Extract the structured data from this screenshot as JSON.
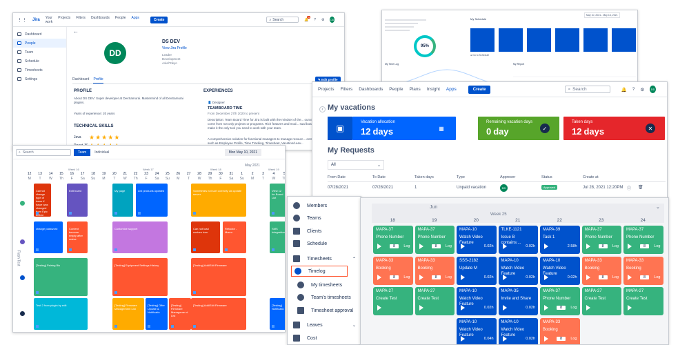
{
  "jira_profile": {
    "logo": "Jira",
    "nav": [
      "Your work",
      "Projects",
      "Filters",
      "Dashboards",
      "People",
      "Apps"
    ],
    "create": "Create",
    "search_placeholder": "Search",
    "notif_count": "9+",
    "avatar": "DD",
    "sidebar": [
      "Dashboard",
      "People",
      "Team",
      "Schedule",
      "Timesheets",
      "Settings"
    ],
    "name": "DS DEV",
    "view_profile": "View Jira Profile",
    "meta": [
      "Leader",
      "Development",
      "Asia/Tokyo"
    ],
    "tabs": [
      "Dashboard",
      "Profile"
    ],
    "edit_profile": "Edit profile",
    "profile_heading": "PROFILE",
    "about": "About DS DEV: Super developer at DevSamurai. Mastermind of all DevSamurai plugins.",
    "years": "Years of experience: 20 years",
    "skills_heading": "TECHNICAL SKILLS",
    "skills": [
      {
        "name": "Java",
        "stars": 5
      },
      {
        "name": "React JS",
        "stars": 5
      }
    ],
    "experiences_heading": "EXPERIENCES",
    "exp_role": "Designer",
    "exp_title": "TEAMBOARD TIME",
    "exp_dates": "From December 27th 2020 to present",
    "exp_desc": "Description: Team Board Time for Jira is built with the mindset of the... ources come from not only projects or programs. Rich features and mod... sual board make it the only tool you need to work with your team.",
    "exp_desc2": "A comprehensive solution for functional managers to manage resourc... ects such as Employee Profile, Time Tracking, Timesheet, Vacation/Leav..."
  },
  "dashboard_top": {
    "date_range": "May 10, 2021 - May 16, 2021",
    "gauge_value": "95%",
    "my_schedule": "My Schedule",
    "go_to_schedule": "Go to Schedule",
    "my_time_log": "My Time Log",
    "my_report": "My Report"
  },
  "team_board": {
    "search_placeholder": "Search",
    "toggle": [
      "Team",
      "Individual"
    ],
    "date": "Mon May 10, 2021",
    "month": "May 2021",
    "weeks": [
      "Week 16",
      "Week 17",
      "Week 18",
      "Week 19"
    ],
    "days": [
      "12",
      "13",
      "14",
      "15",
      "16",
      "17",
      "18",
      "19",
      "20",
      "21",
      "22",
      "23",
      "24",
      "25",
      "26",
      "27",
      "28",
      "29",
      "30",
      "31",
      "1",
      "2",
      "3",
      "4",
      "5"
    ],
    "dows": [
      "M",
      "T",
      "W",
      "Th",
      "F",
      "Sa",
      "Su",
      "M",
      "T",
      "W",
      "Th",
      "F",
      "Sa",
      "Su",
      "M",
      "T",
      "W",
      "Th",
      "F",
      "Sa",
      "Su",
      "M",
      "T",
      "W",
      "Th"
    ],
    "side_label": "Flash Test",
    "cards": [
      {
        "text": "Cannot change type of issue if issue was changed from Epic before",
        "color": "#de350b"
      },
      {
        "text": "Edit board",
        "color": "#6554c0"
      },
      {
        "text": "My page",
        "color": "#00a3bf"
      },
      {
        "text": "List products updated",
        "color": "#0065ff"
      },
      {
        "text": "Sometimes not sort correctly via update server",
        "color": "#ffab00"
      },
      {
        "text": "View 12 for Board List",
        "color": "#36b37e"
      },
      {
        "text": "change password",
        "color": "#0065ff"
      },
      {
        "text": "Content become empty after resize",
        "color": "#ff5630"
      },
      {
        "text": "Customize support",
        "color": "#c377e0"
      },
      {
        "text": "Can not load custom icon",
        "color": "#de350b"
      },
      {
        "text": "Refactor - Macro",
        "color": "#ff5630"
      },
      {
        "text": "SMS Integration",
        "color": "#36b37e"
      },
      {
        "text": "[Testing] Pairing Bis",
        "color": "#36b37e"
      },
      {
        "text": "[Testing] Equipment Settings History",
        "color": "#ff5630"
      },
      {
        "text": "[Testing] Add/Edit Firmware",
        "color": "#ff5630"
      },
      {
        "text": "Test 2 from plugin by edit",
        "color": "#00b8d9"
      },
      {
        "text": "[Testing] Firmware Management List",
        "color": "#ffab00"
      },
      {
        "text": "[Testing] Offer Update & Notificatio",
        "color": "#0065ff"
      },
      {
        "text": "[Testing] Firmware Manageme nt List",
        "color": "#ff5630"
      },
      {
        "text": "[Testing] Add/Edit Firmware",
        "color": "#ff5630"
      },
      {
        "text": "[Testing] Notificatio",
        "color": "#0065ff"
      }
    ]
  },
  "vacations": {
    "nav": [
      "Projects",
      "Filters",
      "Dashboards",
      "People",
      "Plans",
      "Insight",
      "Apps"
    ],
    "create": "Create",
    "search_placeholder": "Search",
    "avatar": "DD",
    "title": "My vacations",
    "tiles": [
      {
        "label": "Vacation allocation",
        "number": "12",
        "unit": "days",
        "color": "#0065ff"
      },
      {
        "label": "Remaining vacation days",
        "number": "0",
        "unit": "day",
        "color": "#57a52a"
      },
      {
        "label": "Taken days",
        "number": "12",
        "unit": "days",
        "color": "#e5262b"
      }
    ],
    "requests_title": "My Requests",
    "filter": "All",
    "columns": [
      "From Date",
      "To Date",
      "Taken days",
      "Type",
      "Approver",
      "Status",
      "Create at"
    ],
    "row": {
      "from": "07/28/2021",
      "to": "07/28/2021",
      "taken": "1",
      "type": "Unpaid vacation",
      "approver": "DD",
      "status": "Approved",
      "created": "Jul 28, 2021 12:20PM"
    }
  },
  "timelog_menu": {
    "items": [
      "Members",
      "Teams",
      "Clients",
      "Schedule",
      "Timesheets",
      "Timelog",
      "My timesheets",
      "Team's timesheets",
      "Timesheet approval",
      "Leaves",
      "Cost"
    ]
  },
  "timelog_board": {
    "month": "Jun",
    "week": "Week 25",
    "days": [
      "18",
      "19",
      "20",
      "21",
      "22",
      "23",
      "24"
    ],
    "columns": [
      [
        {
          "key": "MAPA-37",
          "title": "Phone Number",
          "num": "8",
          "end": "Log",
          "color": "#36b37e"
        },
        {
          "key": "MAPA-33",
          "title": "Booking",
          "num": "8",
          "end": "Log",
          "color": "#ff7452"
        },
        {
          "key": "MAPA-27",
          "title": "Create Test",
          "num": "",
          "end": "",
          "color": "#36b37e"
        }
      ],
      [
        {
          "key": "MAPA-37",
          "title": "Phone Number",
          "num": "8",
          "end": "Log",
          "color": "#36b37e"
        },
        {
          "key": "MAPA-33",
          "title": "Booking",
          "num": "8",
          "end": "Log",
          "color": "#ff7452"
        },
        {
          "key": "MAPA-27",
          "title": "Create Test",
          "num": "",
          "end": "",
          "color": "#36b37e"
        }
      ],
      [
        {
          "key": "MAPA-10",
          "title": "Watch Video Feature",
          "num": "",
          "end": "0.02h",
          "color": "#0052cc"
        },
        {
          "key": "SSS-2182",
          "title": "Update M",
          "num": "",
          "end": "0.02h",
          "color": "#0052cc"
        },
        {
          "key": "MAPA-10",
          "title": "Watch Video Feature",
          "num": "",
          "end": "0.02h",
          "color": "#0052cc"
        },
        {
          "key": "MAPA-10",
          "title": "Watch Video Feature",
          "num": "",
          "end": "0.04h",
          "color": "#0052cc"
        }
      ],
      [
        {
          "key": "TLKE-1121",
          "title": "Issue B contains:...",
          "num": "",
          "end": "0.02h",
          "color": "#0052cc"
        },
        {
          "key": "MAPA-10",
          "title": "Watch Video Feature",
          "num": "",
          "end": "0.02h",
          "color": "#0052cc"
        },
        {
          "key": "MAPA-35",
          "title": "Invite and Share",
          "num": "",
          "end": "0.02h",
          "color": "#0052cc"
        },
        {
          "key": "MAPA-10",
          "title": "Watch Video Feature",
          "num": "",
          "end": "0.02h",
          "color": "#0052cc"
        }
      ],
      [
        {
          "key": "MAPA-39",
          "title": "Task 1",
          "num": "",
          "end": "2.58h",
          "color": "#0052cc"
        },
        {
          "key": "MAPA-10",
          "title": "Watch Video Feature",
          "num": "",
          "end": "0.02h",
          "color": "#0052cc"
        },
        {
          "key": "MAPA-37",
          "title": "Phone Number",
          "num": "8",
          "end": "Log",
          "color": "#36b37e"
        },
        {
          "key": "MAPA-33",
          "title": "Booking",
          "num": "8",
          "end": "Log",
          "color": "#ff7452"
        }
      ],
      [
        {
          "key": "MAPA-37",
          "title": "Phone Number",
          "num": "8",
          "end": "Log",
          "color": "#36b37e"
        },
        {
          "key": "MAPA-33",
          "title": "Booking",
          "num": "8",
          "end": "Log",
          "color": "#ff7452"
        },
        {
          "key": "MAPA-27",
          "title": "Create Test",
          "num": "",
          "end": "",
          "color": "#36b37e"
        }
      ],
      [
        {
          "key": "MAPA-37",
          "title": "Phone Number",
          "num": "8",
          "end": "Log",
          "color": "#36b37e"
        },
        {
          "key": "MAPA-33",
          "title": "Booking",
          "num": "8",
          "end": "Log",
          "color": "#ff7452"
        },
        {
          "key": "MAPA-27",
          "title": "Create Test",
          "num": "",
          "end": "",
          "color": "#36b37e"
        }
      ]
    ]
  }
}
